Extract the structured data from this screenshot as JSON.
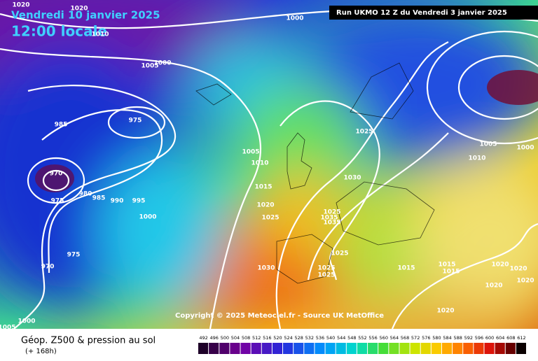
{
  "header": {
    "date": "Vendredi 10 janvier 2025",
    "time": "12:00 locale",
    "run": "Run UKMO 12 Z du Vendredi 3 janvier 2025"
  },
  "copyright": "Copyright © 2025 Meteociel.fr - Source UK MetOffice",
  "legend": {
    "title": "Géop. Z500 & pression au sol",
    "subtitle": "(+ 168h)",
    "scale": [
      492,
      496,
      500,
      504,
      508,
      512,
      516,
      520,
      524,
      528,
      532,
      536,
      540,
      544,
      548,
      552,
      556,
      560,
      564,
      568,
      572,
      576,
      580,
      584,
      588,
      592,
      596,
      600,
      604,
      608,
      612
    ]
  },
  "isobar_labels": [
    1020,
    1020,
    1000,
    1010,
    1005,
    1000,
    975,
    985,
    1025,
    1005,
    1005,
    1000,
    1010,
    1010,
    970,
    1030,
    1015,
    980,
    985,
    975,
    990,
    995,
    1020,
    1025,
    1035,
    1035,
    1025,
    1000,
    975,
    1025,
    1015,
    1015,
    1015,
    970,
    1030,
    1025,
    1025,
    1020,
    1020,
    1020,
    1020,
    1020,
    1000,
    1005
  ]
}
